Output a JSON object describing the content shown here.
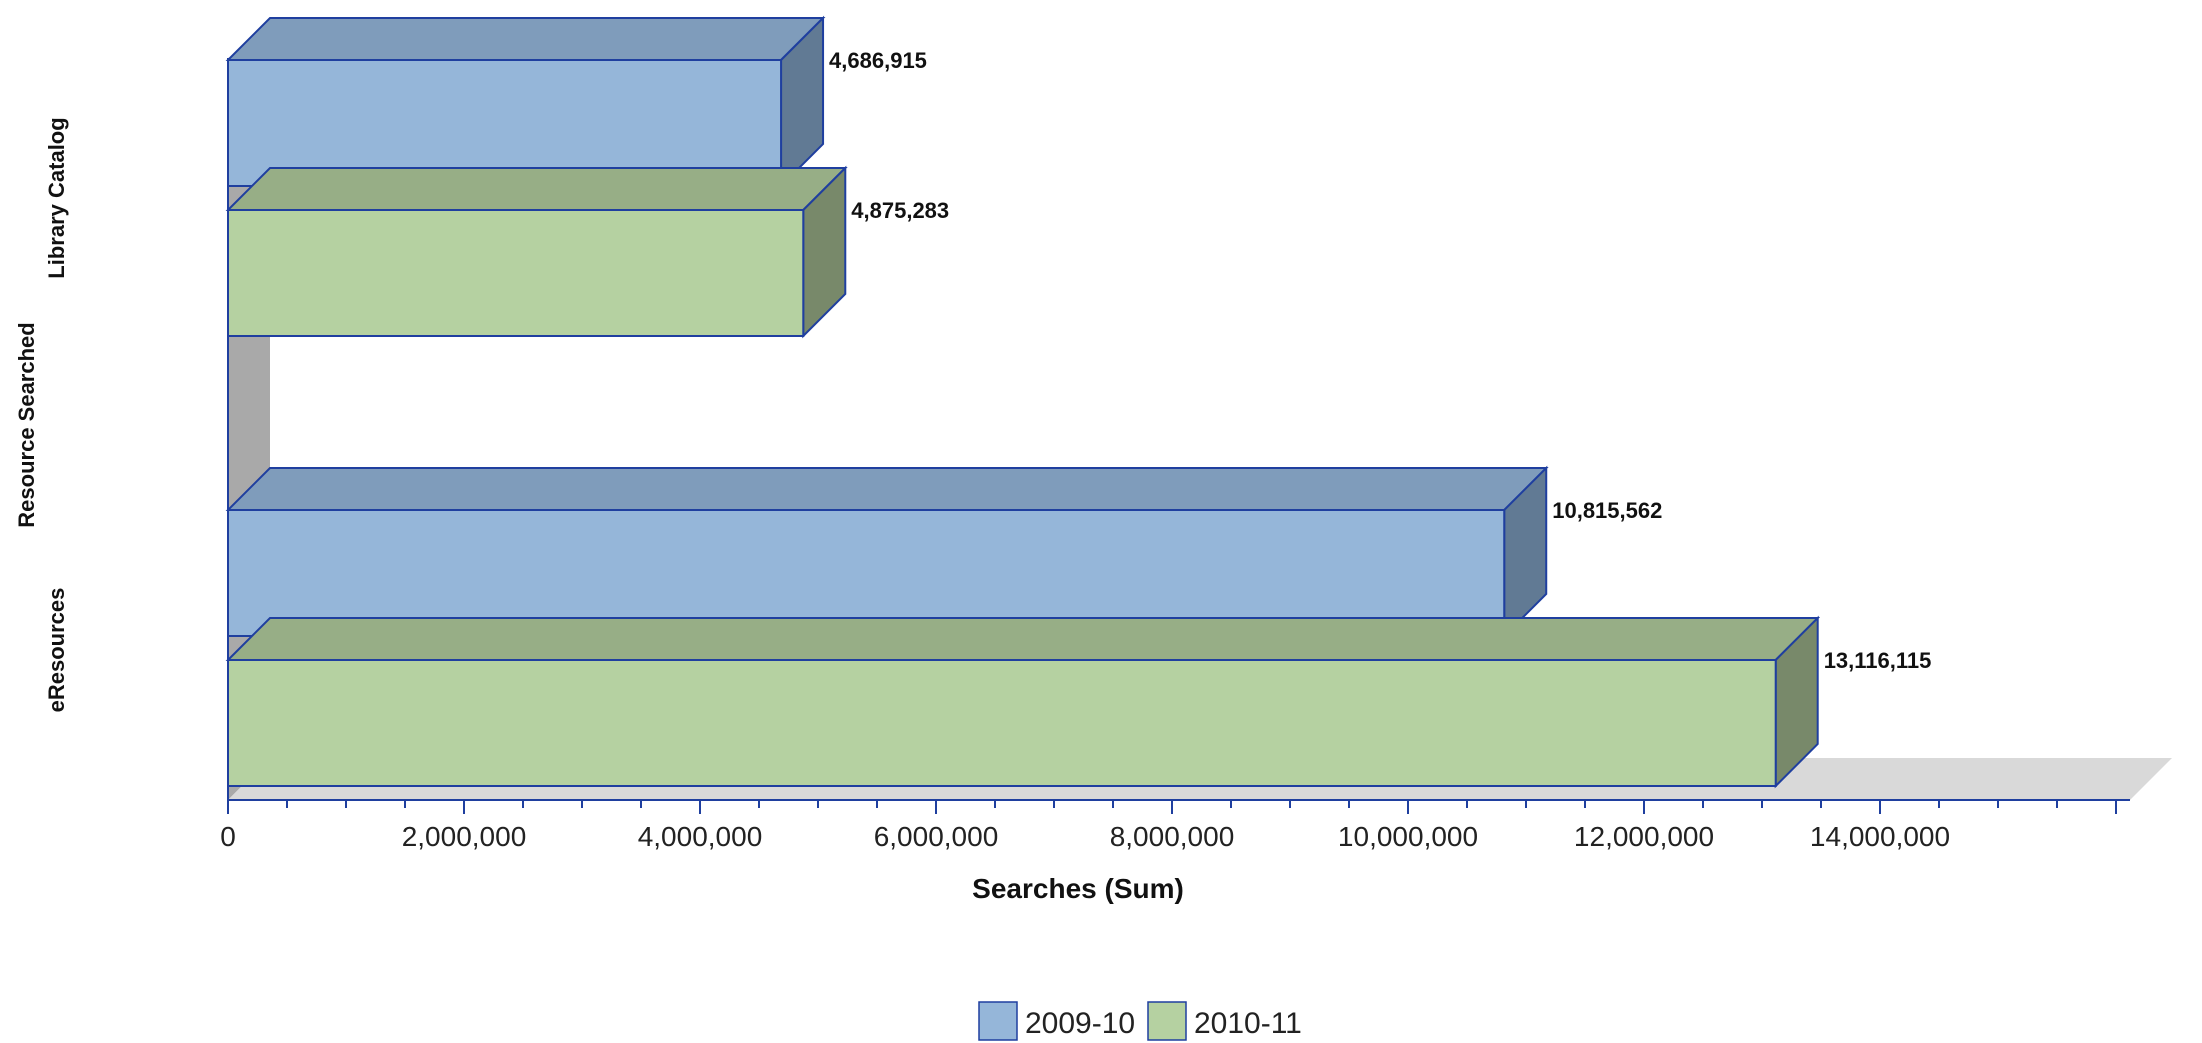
{
  "chart_data": {
    "type": "bar",
    "orientation": "horizontal",
    "style": "3d",
    "categories": [
      "Library Catalog",
      "eResources"
    ],
    "series": [
      {
        "name": "2009-10",
        "values": [
          4686915,
          10815562
        ],
        "color": "#95b6d9"
      },
      {
        "name": "2010-11",
        "values": [
          4875283,
          13116115
        ],
        "color": "#b5d1a1"
      }
    ],
    "value_labels": [
      [
        "4,686,915",
        "10,815,562"
      ],
      [
        "4,875,283",
        "13,116,115"
      ]
    ],
    "xlabel": "Searches (Sum)",
    "ylabel": "Resource Searched",
    "xlim": [
      0,
      16000000
    ],
    "xticks": [
      0,
      2000000,
      4000000,
      6000000,
      8000000,
      10000000,
      12000000,
      14000000
    ],
    "xtick_labels": [
      "0",
      "2,000,000",
      "4,000,000",
      "6,000,000",
      "8,000,000",
      "10,000,000",
      "12,000,000",
      "14,000,000"
    ],
    "grid": false,
    "legend_placement": "bottom-center"
  }
}
